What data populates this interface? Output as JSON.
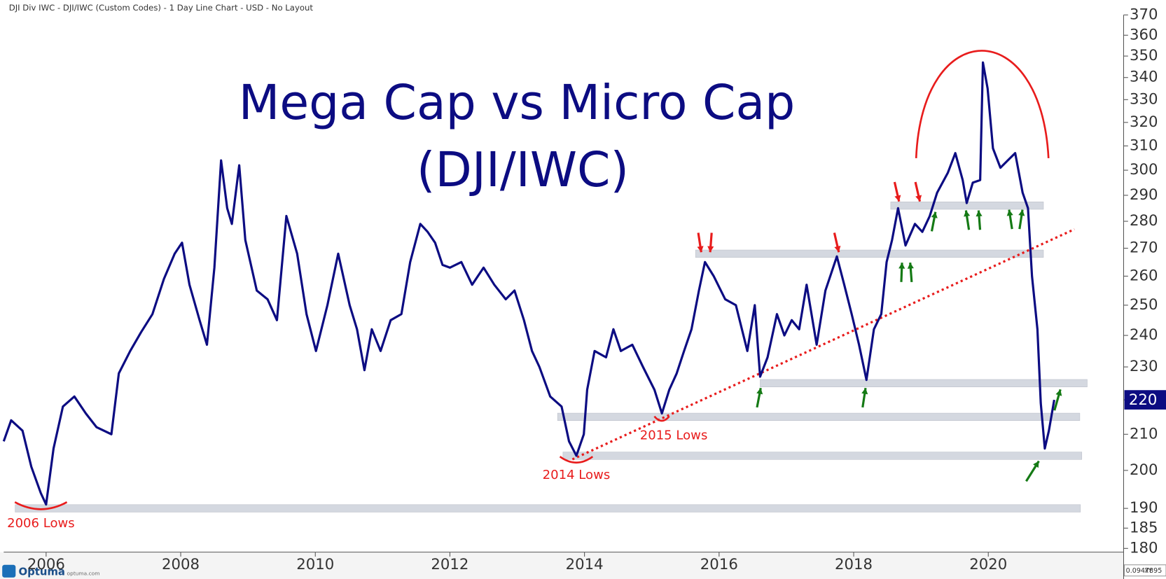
{
  "header": "DJI Div IWC - DJI/IWC (Custom Codes) - 1 Day Line Chart - USD - No Layout",
  "footer": {
    "logo": "Optuma",
    "site": "optuma.com",
    "readout": "0.0947895",
    "mode": "XY"
  },
  "chart_data": {
    "type": "line",
    "title": "Mega Cap vs Micro Cap",
    "subtitle": "(DJI/IWC)",
    "log_scale": true,
    "grid": false,
    "xlim": [
      2005.37,
      2022.0
    ],
    "xticks": [
      2006,
      2008,
      2010,
      2012,
      2014,
      2016,
      2018,
      2020
    ],
    "ylim": [
      180,
      370
    ],
    "yticks": [
      180,
      185,
      190,
      200,
      210,
      220,
      230,
      240,
      250,
      260,
      270,
      280,
      290,
      300,
      310,
      320,
      330,
      340,
      350,
      360,
      370
    ],
    "x": [
      2005.37,
      2005.48,
      2005.65,
      2005.78,
      2005.92,
      2006.0,
      2006.11,
      2006.25,
      2006.42,
      2006.59,
      2006.75,
      2006.97,
      2007.08,
      2007.25,
      2007.41,
      2007.58,
      2007.75,
      2007.91,
      2008.02,
      2008.13,
      2008.28,
      2008.39,
      2008.5,
      2008.6,
      2008.69,
      2008.76,
      2008.87,
      2008.96,
      2009.13,
      2009.29,
      2009.43,
      2009.57,
      2009.73,
      2009.87,
      2010.01,
      2010.18,
      2010.34,
      2010.51,
      2010.62,
      2010.73,
      2010.84,
      2010.97,
      2011.12,
      2011.28,
      2011.41,
      2011.56,
      2011.67,
      2011.78,
      2011.89,
      2012.0,
      2012.17,
      2012.33,
      2012.5,
      2012.66,
      2012.83,
      2012.96,
      2013.1,
      2013.22,
      2013.33,
      2013.49,
      2013.66,
      2013.77,
      2013.88,
      2013.99,
      2014.04,
      2014.15,
      2014.32,
      2014.43,
      2014.54,
      2014.71,
      2014.87,
      2015.04,
      2015.15,
      2015.26,
      2015.37,
      2015.48,
      2015.59,
      2015.7,
      2015.79,
      2015.92,
      2016.09,
      2016.25,
      2016.42,
      2016.53,
      2016.61,
      2016.72,
      2016.86,
      2016.97,
      2017.08,
      2017.19,
      2017.3,
      2017.45,
      2017.58,
      2017.75,
      2017.86,
      2017.97,
      2018.08,
      2018.19,
      2018.3,
      2018.41,
      2018.49,
      2018.57,
      2018.66,
      2018.77,
      2018.91,
      2019.02,
      2019.13,
      2019.24,
      2019.4,
      2019.51,
      2019.62,
      2019.68,
      2019.77,
      2019.88,
      2019.92,
      2019.99,
      2020.07,
      2020.18,
      2020.29,
      2020.4,
      2020.51,
      2020.59,
      2020.65,
      2020.73,
      2020.78,
      2020.84,
      2020.9,
      2020.98
    ],
    "series": [
      {
        "name": "DJI/IWC",
        "color": "#0c0c82",
        "values": [
          208,
          214,
          211,
          201,
          194,
          191,
          206,
          218,
          221,
          216,
          212,
          210,
          228,
          235,
          241,
          247,
          259,
          268,
          272,
          257,
          245,
          237,
          263,
          304,
          285,
          279,
          302,
          273,
          255,
          252,
          245,
          282,
          268,
          247,
          235,
          250,
          268,
          250,
          242,
          229,
          242,
          235,
          245,
          247,
          265,
          279,
          276,
          272,
          264,
          263,
          265,
          257,
          263,
          257,
          252,
          255,
          245,
          235,
          230,
          221,
          218,
          208,
          204,
          210,
          223,
          235,
          233,
          242,
          235,
          237,
          230,
          223,
          216,
          223,
          228,
          235,
          242,
          255,
          265,
          260,
          252,
          250,
          235,
          250,
          227,
          233,
          247,
          240,
          245,
          242,
          257,
          237,
          255,
          267,
          257,
          247,
          237,
          226,
          242,
          247,
          265,
          273,
          285,
          271,
          279,
          276,
          282,
          291,
          299,
          307,
          296,
          287,
          295,
          296,
          347,
          335,
          309,
          301,
          304,
          307,
          291,
          285,
          260,
          242,
          219,
          206,
          211,
          220
        ]
      }
    ],
    "trend_line": {
      "x": [
        2013.82,
        2021.28
      ],
      "values": [
        203,
        277
      ],
      "color": "#e81c1c"
    },
    "support_bands": [
      {
        "x": [
          2015.65,
          2020.82
        ],
        "value": 268
      },
      {
        "x": [
          2018.55,
          2020.82
        ],
        "value": 286
      },
      {
        "x": [
          2016.61,
          2021.47
        ],
        "value": 225
      },
      {
        "x": [
          2013.6,
          2021.36
        ],
        "value": 215
      },
      {
        "x": [
          2013.68,
          2021.39
        ],
        "value": 204
      },
      {
        "x": [
          2005.54,
          2021.37
        ],
        "value": 190
      }
    ],
    "annotations": [
      "2006 Lows",
      "2014 Lows",
      "2015 Lows"
    ]
  }
}
